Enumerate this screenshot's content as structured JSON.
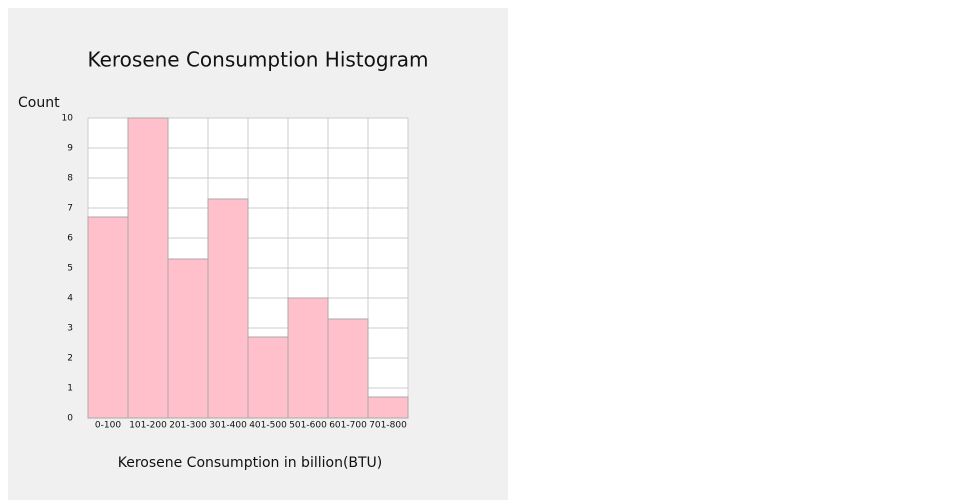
{
  "chart_data": {
    "type": "bar",
    "title": "Kerosene Consumption Histogram",
    "y_label": "Count",
    "x_label": "Kerosene Consumption in billion(BTU)",
    "categories": [
      "0-100",
      "101-200",
      "201-300",
      "301-400",
      "401-500",
      "501-600",
      "601-700",
      "701-800"
    ],
    "values": [
      6.7,
      10,
      5.3,
      7.3,
      2.7,
      4,
      3.3,
      0.7
    ],
    "color": "#ffc0cb",
    "ylim": [
      0,
      10
    ],
    "yticks": [
      0,
      1,
      2,
      3,
      4,
      5,
      6,
      7,
      8,
      9,
      10
    ],
    "grid": true
  }
}
